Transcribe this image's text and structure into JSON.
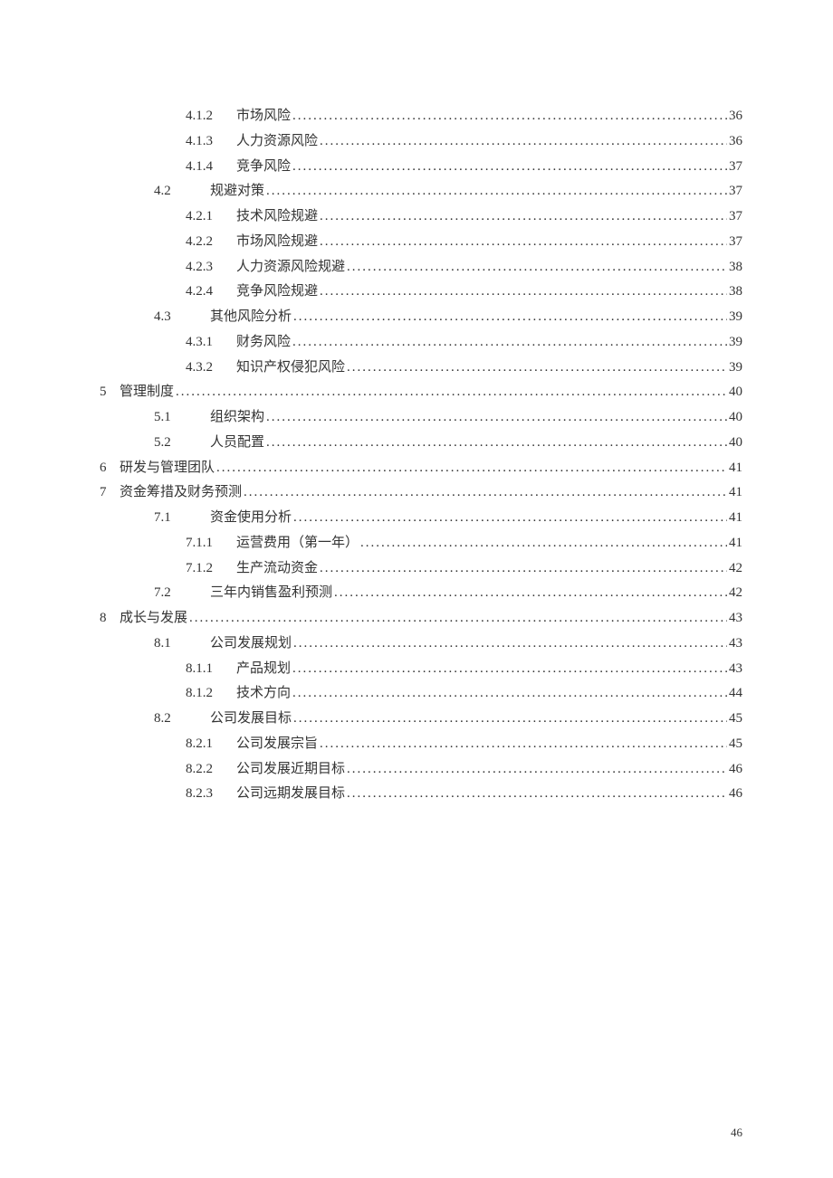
{
  "toc": {
    "text_color": "#333333",
    "font_size_pt": 11,
    "line_height": 1.85,
    "entries": [
      {
        "level": 2,
        "num": "4.1.2",
        "title": "市场风险",
        "page": "36"
      },
      {
        "level": 2,
        "num": "4.1.3",
        "title": "人力资源风险",
        "page": "36"
      },
      {
        "level": 2,
        "num": "4.1.4",
        "title": "竞争风险",
        "page": "37"
      },
      {
        "level": 1,
        "num": "4.2",
        "title": "规避对策",
        "page": "37"
      },
      {
        "level": 2,
        "num": "4.2.1",
        "title": "技术风险规避",
        "page": "37"
      },
      {
        "level": 2,
        "num": "4.2.2",
        "title": "市场风险规避",
        "page": "37"
      },
      {
        "level": 2,
        "num": "4.2.3",
        "title": "人力资源风险规避",
        "page": "38"
      },
      {
        "level": 2,
        "num": "4.2.4",
        "title": "竞争风险规避",
        "page": "38"
      },
      {
        "level": 1,
        "num": "4.3",
        "title": "其他风险分析",
        "page": "39"
      },
      {
        "level": 2,
        "num": "4.3.1",
        "title": "财务风险",
        "page": "39"
      },
      {
        "level": 2,
        "num": "4.3.2",
        "title": "知识产权侵犯风险",
        "page": "39"
      },
      {
        "level": 0,
        "num": "5",
        "title": "管理制度",
        "page": "40"
      },
      {
        "level": 1,
        "num": "5.1",
        "title": "组织架构",
        "page": "40"
      },
      {
        "level": 1,
        "num": "5.2",
        "title": "人员配置",
        "page": "40"
      },
      {
        "level": 0,
        "num": "6",
        "title": "研发与管理团队",
        "page": "41"
      },
      {
        "level": 0,
        "num": "7",
        "title": "资金筹措及财务预测",
        "page": "41"
      },
      {
        "level": 1,
        "num": "7.1",
        "title": "资金使用分析",
        "page": "41"
      },
      {
        "level": 2,
        "num": "7.1.1",
        "title": "运营费用（第一年）",
        "page": "41"
      },
      {
        "level": 2,
        "num": "7.1.2",
        "title": "生产流动资金",
        "page": "42"
      },
      {
        "level": 1,
        "num": "7.2",
        "title": "三年内销售盈利预测",
        "page": "42"
      },
      {
        "level": 0,
        "num": "8",
        "title": "成长与发展",
        "page": "43"
      },
      {
        "level": 1,
        "num": "8.1",
        "title": "公司发展规划",
        "page": "43"
      },
      {
        "level": 2,
        "num": "8.1.1",
        "title": "产品规划",
        "page": "43"
      },
      {
        "level": 2,
        "num": "8.1.2",
        "title": "技术方向",
        "page": "44"
      },
      {
        "level": 1,
        "num": "8.2",
        "title": "公司发展目标",
        "page": "45"
      },
      {
        "level": 2,
        "num": "8.2.1",
        "title": "公司发展宗旨",
        "page": "45"
      },
      {
        "level": 2,
        "num": "8.2.2",
        "title": "公司发展近期目标",
        "page": "46"
      },
      {
        "level": 2,
        "num": "8.2.3",
        "title": "公司远期发展目标",
        "page": "46"
      }
    ]
  },
  "footer": {
    "page_number": "46"
  }
}
